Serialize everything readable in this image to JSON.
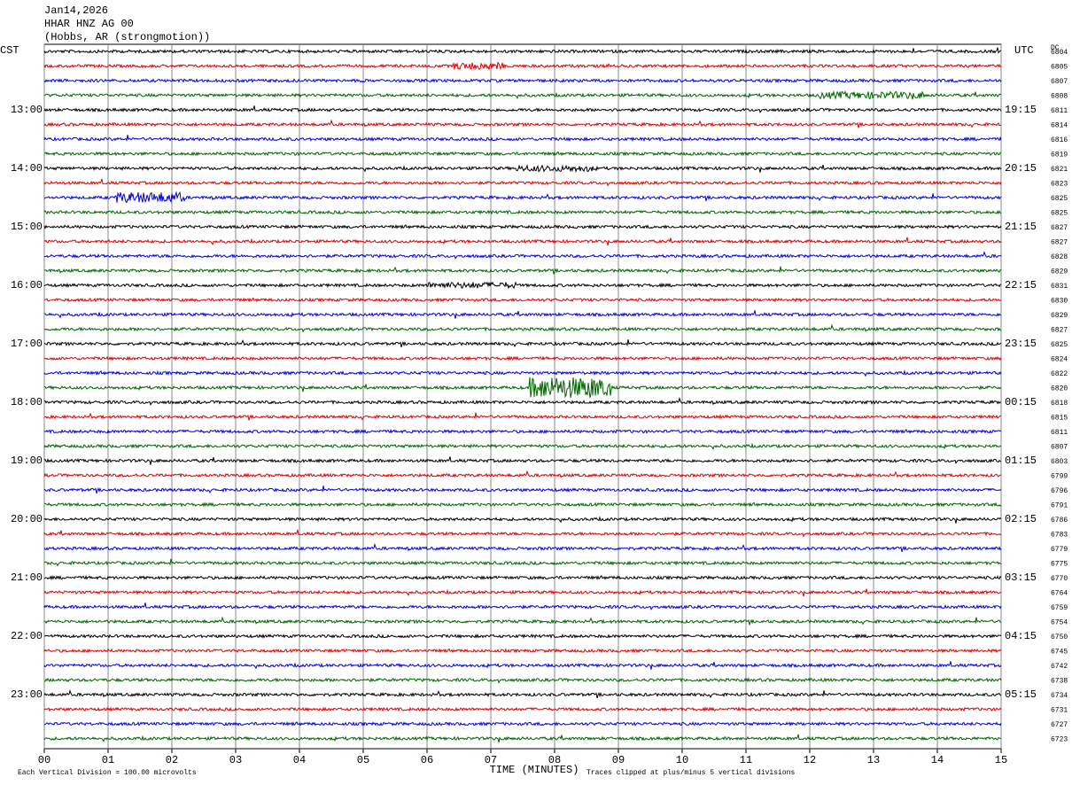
{
  "chart_data": {
    "type": "helicorder",
    "title_lines": [
      "Jan14,2026",
      "HHAR HNZ AG 00",
      "(Hobbs, AR (strongmotion))"
    ],
    "left_axis_title": "CST",
    "right_axis_title": "UTC",
    "dc_title": "DC",
    "xlabel": "TIME (MINUTES)",
    "scale_note": "Each Vertical Division =  100.00 microvolts",
    "clip_note": "Traces clipped at plus/minus 5 vertical divisions",
    "xlim": [
      0,
      15
    ],
    "xticks": [
      {
        "value": 0,
        "label": "00"
      },
      {
        "value": 1,
        "label": "01"
      },
      {
        "value": 2,
        "label": "02"
      },
      {
        "value": 3,
        "label": "03"
      },
      {
        "value": 4,
        "label": "04"
      },
      {
        "value": 5,
        "label": "05"
      },
      {
        "value": 6,
        "label": "06"
      },
      {
        "value": 7,
        "label": "07"
      },
      {
        "value": 8,
        "label": "08"
      },
      {
        "value": 9,
        "label": "09"
      },
      {
        "value": 10,
        "label": "10"
      },
      {
        "value": 11,
        "label": "11"
      },
      {
        "value": 12,
        "label": "12"
      },
      {
        "value": 13,
        "label": "13"
      },
      {
        "value": 14,
        "label": "14"
      },
      {
        "value": 15,
        "label": "15"
      }
    ],
    "trace_colors": [
      "#000000",
      "#e00000",
      "#0000e0",
      "#006400"
    ],
    "cst_labels": [
      null,
      null,
      null,
      null,
      "13:00",
      null,
      null,
      null,
      "14:00",
      null,
      null,
      null,
      "15:00",
      null,
      null,
      null,
      "16:00",
      null,
      null,
      null,
      "17:00",
      null,
      null,
      null,
      "18:00",
      null,
      null,
      null,
      "19:00",
      null,
      null,
      null,
      "20:00",
      null,
      null,
      null,
      "21:00",
      null,
      null,
      null,
      "22:00",
      null,
      null,
      null,
      "23:00",
      null,
      null,
      null
    ],
    "utc_labels": [
      null,
      null,
      null,
      null,
      "19:15",
      null,
      null,
      null,
      "20:15",
      null,
      null,
      null,
      "21:15",
      null,
      null,
      null,
      "22:15",
      null,
      null,
      null,
      "23:15",
      null,
      null,
      null,
      "00:15",
      null,
      null,
      null,
      "01:15",
      null,
      null,
      null,
      "02:15",
      null,
      null,
      null,
      "03:15",
      null,
      null,
      null,
      "04:15",
      null,
      null,
      null,
      "05:15",
      null,
      null,
      null
    ],
    "dc_values": [
      6804,
      6805,
      6807,
      6808,
      6811,
      6814,
      6816,
      6819,
      6821,
      6823,
      6825,
      6825,
      6827,
      6827,
      6828,
      6829,
      6831,
      6830,
      6829,
      6827,
      6825,
      6824,
      6822,
      6820,
      6818,
      6815,
      6811,
      6807,
      6803,
      6799,
      6796,
      6791,
      6786,
      6783,
      6779,
      6775,
      6770,
      6764,
      6759,
      6754,
      6750,
      6745,
      6742,
      6738,
      6734,
      6731,
      6727,
      6723
    ]
  }
}
